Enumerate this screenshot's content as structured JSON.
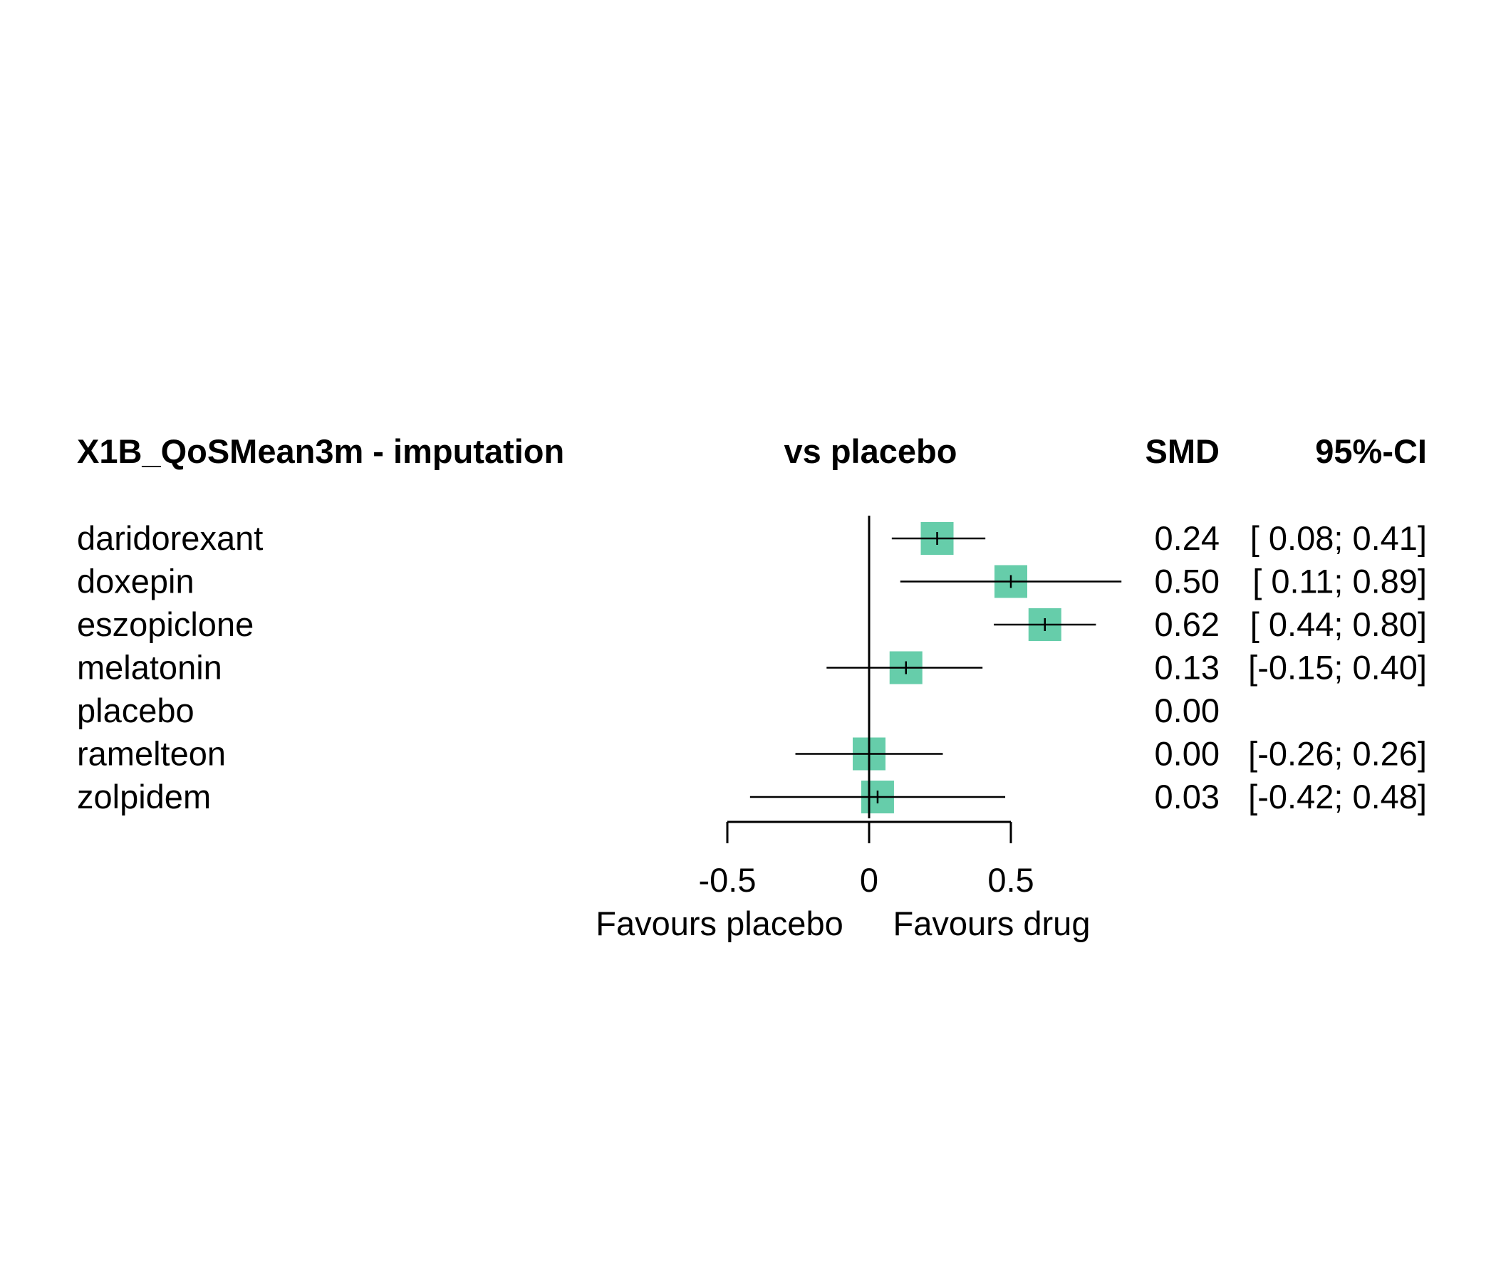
{
  "chart_data": {
    "type": "forest",
    "headers": {
      "outcome": "X1B_QoSMean3m - imputation",
      "comparison": "vs placebo",
      "effect": "SMD",
      "ci": "95%-CI"
    },
    "rows": [
      {
        "treatment": "daridorexant",
        "smd": 0.24,
        "lower": 0.08,
        "upper": 0.41,
        "smd_text": "0.24",
        "ci_text": "[ 0.08; 0.41]",
        "weight": 1.0
      },
      {
        "treatment": "doxepin",
        "smd": 0.5,
        "lower": 0.11,
        "upper": 0.89,
        "smd_text": "0.50",
        "ci_text": "[ 0.11; 0.89]",
        "weight": 1.0
      },
      {
        "treatment": "eszopiclone",
        "smd": 0.62,
        "lower": 0.44,
        "upper": 0.8,
        "smd_text": "0.62",
        "ci_text": "[ 0.44; 0.80]",
        "weight": 1.0
      },
      {
        "treatment": "melatonin",
        "smd": 0.13,
        "lower": -0.15,
        "upper": 0.4,
        "smd_text": "0.13",
        "ci_text": "[-0.15; 0.40]",
        "weight": 1.0
      },
      {
        "treatment": "placebo",
        "smd": 0.0,
        "lower": null,
        "upper": null,
        "smd_text": "0.00",
        "ci_text": "",
        "weight": 0
      },
      {
        "treatment": "ramelteon",
        "smd": 0.0,
        "lower": -0.26,
        "upper": 0.26,
        "smd_text": "0.00",
        "ci_text": "[-0.26; 0.26]",
        "weight": 1.0
      },
      {
        "treatment": "zolpidem",
        "smd": 0.03,
        "lower": -0.42,
        "upper": 0.48,
        "smd_text": "0.03",
        "ci_text": "[-0.42; 0.48]",
        "weight": 1.0
      }
    ],
    "x_ticks": [
      {
        "value": -0.5,
        "label": "-0.5"
      },
      {
        "value": 0,
        "label": "0"
      },
      {
        "value": 0.5,
        "label": "0.5"
      }
    ],
    "xlim": [
      -0.5,
      0.5
    ],
    "reference_line": 0,
    "favours_left": "Favours placebo",
    "favours_right": "Favours drug",
    "marker_color": "#66CDAA"
  }
}
